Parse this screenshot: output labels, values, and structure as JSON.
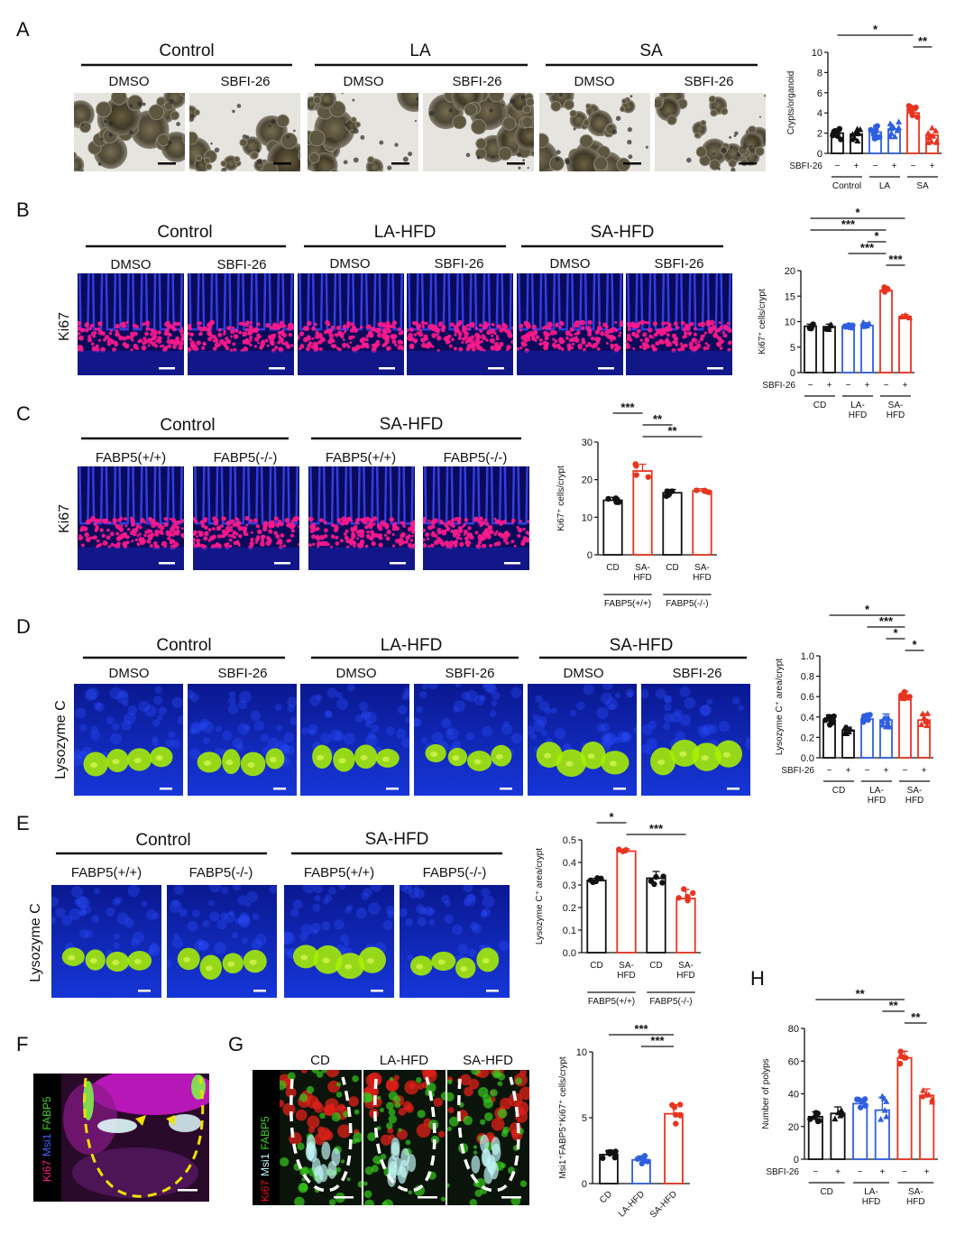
{
  "panels": {
    "A": {
      "label": "A",
      "groups": [
        "Control",
        "LA",
        "SA"
      ],
      "treatments": [
        "DMSO",
        "SBFI-26"
      ]
    },
    "B": {
      "label": "B",
      "groups": [
        "Control",
        "LA-HFD",
        "SA-HFD"
      ],
      "treatments": [
        "DMSO",
        "SBFI-26"
      ],
      "stain": "Ki67"
    },
    "C": {
      "label": "C",
      "groups": [
        "Control",
        "SA-HFD"
      ],
      "genotypes": [
        "FABP5(+/+)",
        "FABP5(-/-)"
      ],
      "stain": "Ki67"
    },
    "D": {
      "label": "D",
      "groups": [
        "Control",
        "LA-HFD",
        "SA-HFD"
      ],
      "treatments": [
        "DMSO",
        "SBFI-26"
      ],
      "stain": "Lysozyme C"
    },
    "E": {
      "label": "E",
      "groups": [
        "Control",
        "SA-HFD"
      ],
      "genotypes": [
        "FABP5(+/+)",
        "FABP5(-/-)"
      ],
      "stain": "Lysozyme C"
    },
    "F": {
      "label": "F",
      "stain_parts": [
        "Ki67",
        "Msi1",
        "FABP5"
      ]
    },
    "G": {
      "label": "G",
      "groups": [
        "CD",
        "LA-HFD",
        "SA-HFD"
      ],
      "stain_parts": [
        "Ki67",
        "Msi1",
        "FABP5"
      ]
    },
    "H": {
      "label": "H"
    }
  },
  "colors": {
    "control": "#111111",
    "la": "#2f5fe0",
    "sa": "#e8341f",
    "ki67": "#ff1a8c",
    "dapi": "#1f3df0",
    "lysozyme": "#a8f000",
    "msi1": "#bff3f3",
    "fabp5": "#40d020"
  },
  "chart_data": [
    {
      "id": "A",
      "type": "bar",
      "ylabel": "Crypts/organoid",
      "ylim": [
        0,
        10
      ],
      "yticks": [
        0,
        2,
        4,
        6,
        8,
        10
      ],
      "categories": [
        "−",
        "+",
        "−",
        "+",
        "−",
        "+"
      ],
      "factor_label": "SBFI-26",
      "group_labels": [
        "Control",
        "LA",
        "SA"
      ],
      "values": [
        2.0,
        1.9,
        2.1,
        2.4,
        4.0,
        1.8
      ],
      "colors": [
        "#111111",
        "#111111",
        "#2f5fe0",
        "#2f5fe0",
        "#e8341f",
        "#e8341f"
      ],
      "significance": [
        {
          "from": 0,
          "to": 4,
          "label": "*"
        },
        {
          "from": 4,
          "to": 5,
          "label": "**"
        }
      ]
    },
    {
      "id": "B",
      "type": "bar",
      "ylabel": "Ki67⁺ cells/crypt",
      "ylim": [
        0,
        20
      ],
      "yticks": [
        0,
        5,
        10,
        15,
        20
      ],
      "categories": [
        "−",
        "+",
        "−",
        "+",
        "−",
        "+"
      ],
      "factor_label": "SBFI-26",
      "group_labels": [
        "CD",
        "LA-\nHFD",
        "SA-\nHFD"
      ],
      "values": [
        9.1,
        9.0,
        9.0,
        9.2,
        16.1,
        11.0
      ],
      "errors": [
        0.4,
        0.5,
        0.3,
        0.6,
        0.7,
        0.4
      ],
      "colors": [
        "#111111",
        "#111111",
        "#2f5fe0",
        "#2f5fe0",
        "#e8341f",
        "#e8341f"
      ],
      "significance": [
        {
          "from": 0,
          "to": 5,
          "label": "*"
        },
        {
          "from": 0,
          "to": 4,
          "label": "***"
        },
        {
          "from": 3,
          "to": 4,
          "label": "*"
        },
        {
          "from": 2,
          "to": 4,
          "label": "***"
        },
        {
          "from": 4,
          "to": 5,
          "label": "***"
        }
      ]
    },
    {
      "id": "C",
      "type": "bar",
      "ylabel": "Ki67⁺ cells/crypt",
      "ylim": [
        0,
        30
      ],
      "yticks": [
        0,
        10,
        20,
        30
      ],
      "categories": [
        "CD",
        "SA-\nHFD",
        "CD",
        "SA-\nHFD"
      ],
      "group_labels": [
        "FABP5(+/+)",
        "FABP5(-/-)"
      ],
      "values": [
        14.5,
        22.3,
        16.5,
        17.0
      ],
      "errors": [
        0.8,
        1.8,
        0.9,
        0.6
      ],
      "colors": [
        "#111111",
        "#e8341f",
        "#111111",
        "#e8341f"
      ],
      "significance": [
        {
          "from": 0,
          "to": 1,
          "label": "***"
        },
        {
          "from": 1,
          "to": 2,
          "label": "**"
        },
        {
          "from": 1,
          "to": 3,
          "label": "**"
        }
      ]
    },
    {
      "id": "D",
      "type": "bar",
      "ylabel": "Lysozyme C⁺ area/crypt",
      "ylim": [
        0,
        1.0
      ],
      "yticks": [
        "0.0",
        "0.2",
        "0.4",
        "0.6",
        "0.8",
        "1.0"
      ],
      "categories": [
        "−",
        "+",
        "−",
        "+",
        "−",
        "+"
      ],
      "factor_label": "SBFI-26",
      "group_labels": [
        "CD",
        "LA-\nHFD",
        "SA-\nHFD"
      ],
      "values": [
        0.37,
        0.27,
        0.38,
        0.37,
        0.61,
        0.37
      ],
      "errors": [
        0.05,
        0.03,
        0.04,
        0.06,
        0.04,
        0.06
      ],
      "colors": [
        "#111111",
        "#111111",
        "#2f5fe0",
        "#2f5fe0",
        "#e8341f",
        "#e8341f"
      ],
      "significance": [
        {
          "from": 0,
          "to": 4,
          "label": "*"
        },
        {
          "from": 2,
          "to": 4,
          "label": "***"
        },
        {
          "from": 3,
          "to": 4,
          "label": "*"
        },
        {
          "from": 4,
          "to": 5,
          "label": "*"
        }
      ]
    },
    {
      "id": "E",
      "type": "bar",
      "ylabel": "Lysozyme C⁺ area/crypt",
      "ylim": [
        0,
        0.5
      ],
      "yticks": [
        "0.0",
        "0.1",
        "0.2",
        "0.3",
        "0.4",
        "0.5"
      ],
      "categories": [
        "CD",
        "SA-\nHFD",
        "CD",
        "SA-\nHFD"
      ],
      "group_labels": [
        "FABP5(+/+)",
        "FABP5(-/-)"
      ],
      "values": [
        0.32,
        0.45,
        0.33,
        0.24
      ],
      "errors": [
        0.01,
        0.01,
        0.03,
        0.04
      ],
      "colors": [
        "#111111",
        "#e8341f",
        "#111111",
        "#e8341f"
      ],
      "significance": [
        {
          "from": 0,
          "to": 1,
          "label": "*"
        },
        {
          "from": 1,
          "to": 3,
          "label": "***"
        }
      ]
    },
    {
      "id": "G",
      "type": "bar",
      "ylabel": "Msi1⁺FABP5⁺Ki67⁺ cells/crypt",
      "ylim": [
        0,
        10
      ],
      "yticks": [
        0,
        5,
        10
      ],
      "categories": [
        "CD",
        "LA-HFD",
        "SA-HFD"
      ],
      "values": [
        2.2,
        1.8,
        5.3
      ],
      "errors": [
        0.3,
        0.3,
        0.7
      ],
      "colors": [
        "#111111",
        "#2f5fe0",
        "#e8341f"
      ],
      "significance": [
        {
          "from": 0,
          "to": 2,
          "label": "***"
        },
        {
          "from": 1,
          "to": 2,
          "label": "***"
        }
      ]
    },
    {
      "id": "H",
      "type": "bar",
      "ylabel": "Number of polyps",
      "ylim": [
        0,
        80
      ],
      "yticks": [
        0,
        20,
        40,
        60,
        80
      ],
      "categories": [
        "−",
        "+",
        "−",
        "+",
        "−",
        "+"
      ],
      "factor_label": "SBFI-26",
      "group_labels": [
        "CD",
        "LA-\nHFD",
        "SA-\nHFD"
      ],
      "values": [
        26,
        28,
        34,
        30,
        62,
        39
      ],
      "errors": [
        3,
        4,
        3,
        8,
        4,
        4
      ],
      "colors": [
        "#111111",
        "#111111",
        "#2f5fe0",
        "#2f5fe0",
        "#e8341f",
        "#e8341f"
      ],
      "significance": [
        {
          "from": 0,
          "to": 4,
          "label": "**"
        },
        {
          "from": 3,
          "to": 4,
          "label": "**"
        },
        {
          "from": 4,
          "to": 5,
          "label": "**"
        }
      ]
    }
  ]
}
